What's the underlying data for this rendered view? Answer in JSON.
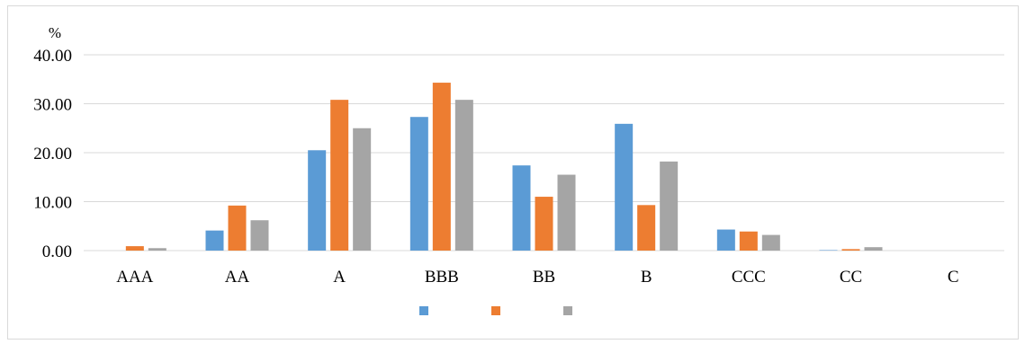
{
  "chart_data": {
    "type": "bar",
    "ylabel": "%",
    "ylim": [
      0,
      40
    ],
    "yticks": [
      0,
      10,
      20,
      30,
      40
    ],
    "ytick_labels": [
      "0.00",
      "10.00",
      "20.00",
      "30.00",
      "40.00"
    ],
    "grid": true,
    "legend_position": "bottom",
    "categories": [
      "AAA",
      "AA",
      "A",
      "BBB",
      "BB",
      "B",
      "CCC",
      "CC",
      "C"
    ],
    "series": [
      {
        "color": "#5b9bd5",
        "values": [
          0.0,
          4.1,
          20.5,
          27.3,
          17.4,
          25.9,
          4.3,
          0.1,
          0.0
        ]
      },
      {
        "color": "#ed7d31",
        "values": [
          0.9,
          9.2,
          30.8,
          34.3,
          11.0,
          9.3,
          3.9,
          0.3,
          0.0
        ]
      },
      {
        "color": "#a5a5a5",
        "values": [
          0.5,
          6.2,
          25.0,
          30.8,
          15.5,
          18.2,
          3.2,
          0.7,
          0.0
        ]
      }
    ]
  }
}
